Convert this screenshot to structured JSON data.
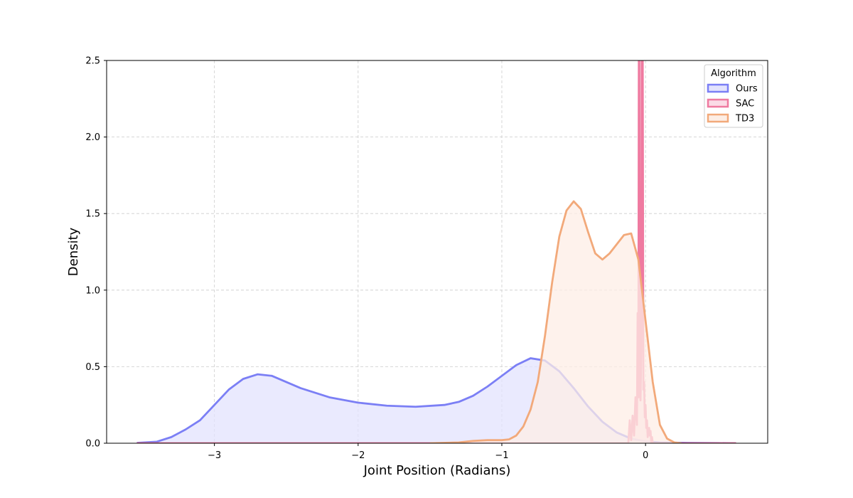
{
  "chart_data": {
    "type": "area",
    "title": "",
    "xlabel": "Joint Position (Radians)",
    "ylabel": "Density",
    "xlim": [
      -3.75,
      0.85
    ],
    "ylim": [
      0,
      2.5
    ],
    "xticks": [
      -3,
      -2,
      -1,
      0
    ],
    "yticks": [
      0.0,
      0.5,
      1.0,
      1.5,
      2.0,
      2.5
    ],
    "xtick_labels": [
      "−3",
      "−2",
      "−1",
      "0"
    ],
    "ytick_labels": [
      "0.0",
      "0.5",
      "1.0",
      "1.5",
      "2.0",
      "2.5"
    ],
    "grid": true,
    "legend": {
      "title": "Algorithm",
      "placement": "top-right"
    },
    "series": [
      {
        "name": "Ours",
        "color": "#7b7ff5",
        "fill": "#e3e3fd",
        "x": [
          -3.54,
          -3.4,
          -3.3,
          -3.2,
          -3.1,
          -3.0,
          -2.9,
          -2.8,
          -2.7,
          -2.6,
          -2.5,
          -2.4,
          -2.2,
          -2.0,
          -1.8,
          -1.6,
          -1.4,
          -1.3,
          -1.2,
          -1.1,
          -1.0,
          -0.9,
          -0.8,
          -0.7,
          -0.6,
          -0.5,
          -0.4,
          -0.3,
          -0.2,
          -0.1,
          0.0,
          0.1,
          0.3,
          0.5,
          0.63
        ],
        "y": [
          0.002,
          0.01,
          0.04,
          0.09,
          0.15,
          0.25,
          0.35,
          0.42,
          0.45,
          0.44,
          0.4,
          0.36,
          0.3,
          0.265,
          0.245,
          0.238,
          0.25,
          0.27,
          0.31,
          0.37,
          0.44,
          0.51,
          0.555,
          0.54,
          0.47,
          0.36,
          0.24,
          0.14,
          0.07,
          0.03,
          0.012,
          0.005,
          0.002,
          0.001,
          0.0
        ]
      },
      {
        "name": "SAC",
        "color": "#ef7aa0",
        "fill": "#fbdbe6",
        "x": [
          -3.54,
          -0.14,
          -0.12,
          -0.11,
          -0.1,
          -0.09,
          -0.08,
          -0.07,
          -0.06,
          -0.055,
          -0.05,
          -0.045,
          -0.04,
          -0.035,
          -0.03,
          -0.025,
          -0.02,
          -0.015,
          -0.01,
          -0.005,
          0.0,
          0.005,
          0.01,
          0.015,
          0.02,
          0.025,
          0.03,
          0.035,
          0.04,
          0.045,
          0.05,
          0.06,
          0.08,
          0.63
        ],
        "y": [
          0.0,
          0.0,
          0.0,
          0.15,
          0.02,
          0.18,
          0.05,
          0.3,
          0.12,
          0.85,
          0.3,
          3.5,
          0.35,
          0.28,
          0.6,
          3.5,
          2.6,
          0.35,
          0.4,
          0.17,
          0.25,
          0.1,
          0.15,
          0.04,
          0.08,
          0.1,
          0.05,
          0.08,
          0.0,
          0.04,
          0.0,
          0.0,
          0.0,
          0.0
        ]
      },
      {
        "name": "TD3",
        "color": "#f2a97a",
        "fill": "#fdeee5",
        "x": [
          -1.5,
          -1.3,
          -1.2,
          -1.1,
          -1.0,
          -0.95,
          -0.9,
          -0.85,
          -0.8,
          -0.75,
          -0.7,
          -0.65,
          -0.6,
          -0.55,
          -0.5,
          -0.45,
          -0.4,
          -0.35,
          -0.3,
          -0.25,
          -0.2,
          -0.15,
          -0.1,
          -0.05,
          0.0,
          0.05,
          0.1,
          0.15,
          0.2,
          0.25
        ],
        "y": [
          0.0,
          0.005,
          0.015,
          0.02,
          0.02,
          0.025,
          0.05,
          0.11,
          0.22,
          0.4,
          0.7,
          1.05,
          1.35,
          1.52,
          1.58,
          1.53,
          1.38,
          1.24,
          1.2,
          1.24,
          1.3,
          1.36,
          1.37,
          1.2,
          0.8,
          0.4,
          0.12,
          0.03,
          0.005,
          0.0
        ]
      }
    ]
  }
}
